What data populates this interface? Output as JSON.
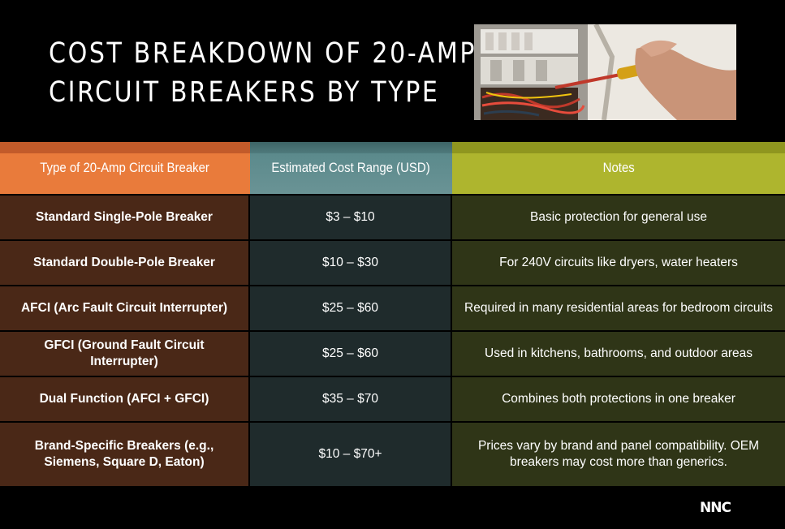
{
  "title": {
    "line1": "COST BREAKDOWN OF 20-AMP",
    "line2": "CIRCUIT BREAKERS BY TYPE"
  },
  "table": {
    "headers": [
      "Type of 20-Amp Circuit Breaker",
      "Estimated Cost Range (USD)",
      "Notes"
    ],
    "header_colors": [
      "#e97b3b",
      "#5b8a8c",
      "#aeb52e"
    ],
    "rows": [
      {
        "type": "Standard Single-Pole Breaker",
        "cost": "$3 – $10",
        "notes": "Basic protection for general use"
      },
      {
        "type": "Standard Double-Pole Breaker",
        "cost": "$10 – $30",
        "notes": "For 240V circuits like dryers, water heaters"
      },
      {
        "type": "AFCI (Arc Fault Circuit Interrupter)",
        "cost": "$25 – $60",
        "notes": "Required in many residential areas for bedroom circuits"
      },
      {
        "type": "GFCI (Ground Fault Circuit Interrupter)",
        "cost": "$25 – $60",
        "notes": "Used in kitchens, bathrooms, and outdoor areas"
      },
      {
        "type": "Dual Function (AFCI + GFCI)",
        "cost": "$35 – $70",
        "notes": "Combines both protections in one breaker"
      },
      {
        "type": "Brand-Specific Breakers (e.g., Siemens, Square D, Eaton)",
        "cost": "$10 – $70+",
        "notes": "Prices vary by brand and panel compatibility. OEM breakers may cost more than generics."
      }
    ]
  },
  "logo": {
    "text": "NNC"
  },
  "photo": {
    "icon": "electrician-panel-photo"
  }
}
